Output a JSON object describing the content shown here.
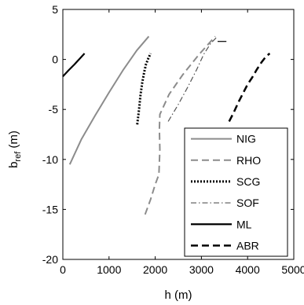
{
  "chart_data": {
    "type": "line",
    "xlabel": "h (m)",
    "ylabel_main": "b",
    "ylabel_sub": "ref",
    "ylabel_unit": " (m)",
    "xlim": [
      0,
      5000
    ],
    "ylim": [
      -20,
      5
    ],
    "xticks": [
      0,
      1000,
      2000,
      3000,
      4000,
      5000
    ],
    "yticks": [
      5,
      0,
      -5,
      -10,
      -15,
      -20
    ],
    "grid": false,
    "legend_position": "bottom-right",
    "series": [
      {
        "name": "NIG",
        "style": "solid",
        "color": "#8c8c8c",
        "width": 2,
        "x": [
          150,
          400,
          700,
          1000,
          1300,
          1600,
          1860
        ],
        "y": [
          -10.5,
          -8.0,
          -5.6,
          -3.3,
          -1.1,
          0.9,
          2.3
        ]
      },
      {
        "name": "RHO",
        "style": "dash",
        "color": "#8c8c8c",
        "width": 2,
        "x": [
          1780,
          1900,
          2000,
          2080,
          2100,
          2090,
          2100,
          2300,
          2600,
          2950,
          3300
        ],
        "y": [
          -15.5,
          -14.0,
          -12.5,
          -11.5,
          -9.0,
          -7.0,
          -5.5,
          -3.5,
          -1.5,
          0.5,
          2.3
        ]
      },
      {
        "name": "SCG",
        "style": "dot",
        "color": "#000000",
        "width": 3,
        "x": [
          1610,
          1650,
          1680,
          1720,
          1760,
          1800,
          1850,
          1900
        ],
        "y": [
          -6.5,
          -5.0,
          -3.6,
          -2.3,
          -1.3,
          -0.5,
          0.1,
          0.6
        ]
      },
      {
        "name": "SOF",
        "style": "dashdot",
        "color": "#555555",
        "width": 1.2,
        "x": [
          2280,
          2500,
          2700,
          2900,
          3050,
          3200,
          3350
        ],
        "y": [
          -6.2,
          -4.5,
          -2.8,
          -1.0,
          0.5,
          1.6,
          2.3
        ]
      },
      {
        "name": "SOF",
        "style": "solid",
        "color": "#000000",
        "width": 1.2,
        "x": [
          3350,
          3540
        ],
        "y": [
          1.8,
          1.8
        ]
      },
      {
        "name": "ML",
        "style": "solid",
        "color": "#000000",
        "width": 2.2,
        "x": [
          0,
          120,
          250,
          350,
          470
        ],
        "y": [
          -1.7,
          -1.1,
          -0.5,
          0.0,
          0.6
        ]
      },
      {
        "name": "ABR",
        "style": "dash",
        "color": "#000000",
        "width": 2.5,
        "x": [
          3600,
          3700,
          3800,
          3900,
          4000,
          4100,
          4200,
          4300,
          4400,
          4480
        ],
        "y": [
          -6.2,
          -5.3,
          -4.3,
          -3.4,
          -2.5,
          -1.8,
          -1.0,
          -0.3,
          0.3,
          0.6
        ]
      }
    ],
    "legend": [
      {
        "name": "NIG",
        "style": "solid",
        "color": "#8c8c8c",
        "width": 2
      },
      {
        "name": "RHO",
        "style": "dash",
        "color": "#8c8c8c",
        "width": 2
      },
      {
        "name": "SCG",
        "style": "dot",
        "color": "#000000",
        "width": 3
      },
      {
        "name": "SOF",
        "style": "dashdot",
        "color": "#555555",
        "width": 1.2
      },
      {
        "name": "ML",
        "style": "solid",
        "color": "#000000",
        "width": 2.2
      },
      {
        "name": "ABR",
        "style": "dash",
        "color": "#000000",
        "width": 2.5
      }
    ]
  }
}
